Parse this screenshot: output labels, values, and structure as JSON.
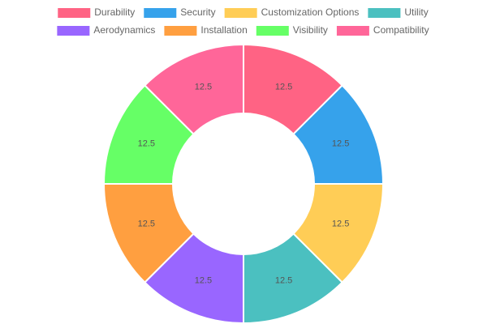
{
  "chart_data": {
    "type": "doughnut",
    "categories": [
      "Durability",
      "Security",
      "Customization Options",
      "Utility",
      "Aerodynamics",
      "Installation",
      "Visibility",
      "Compatibility"
    ],
    "values": [
      12.5,
      12.5,
      12.5,
      12.5,
      12.5,
      12.5,
      12.5,
      12.5
    ],
    "colors": [
      "#ff6384",
      "#36a2eb",
      "#ffcd56",
      "#4bc0c0",
      "#9966ff",
      "#ff9f40",
      "#66ff66",
      "#ff6699"
    ],
    "legend": "top"
  }
}
